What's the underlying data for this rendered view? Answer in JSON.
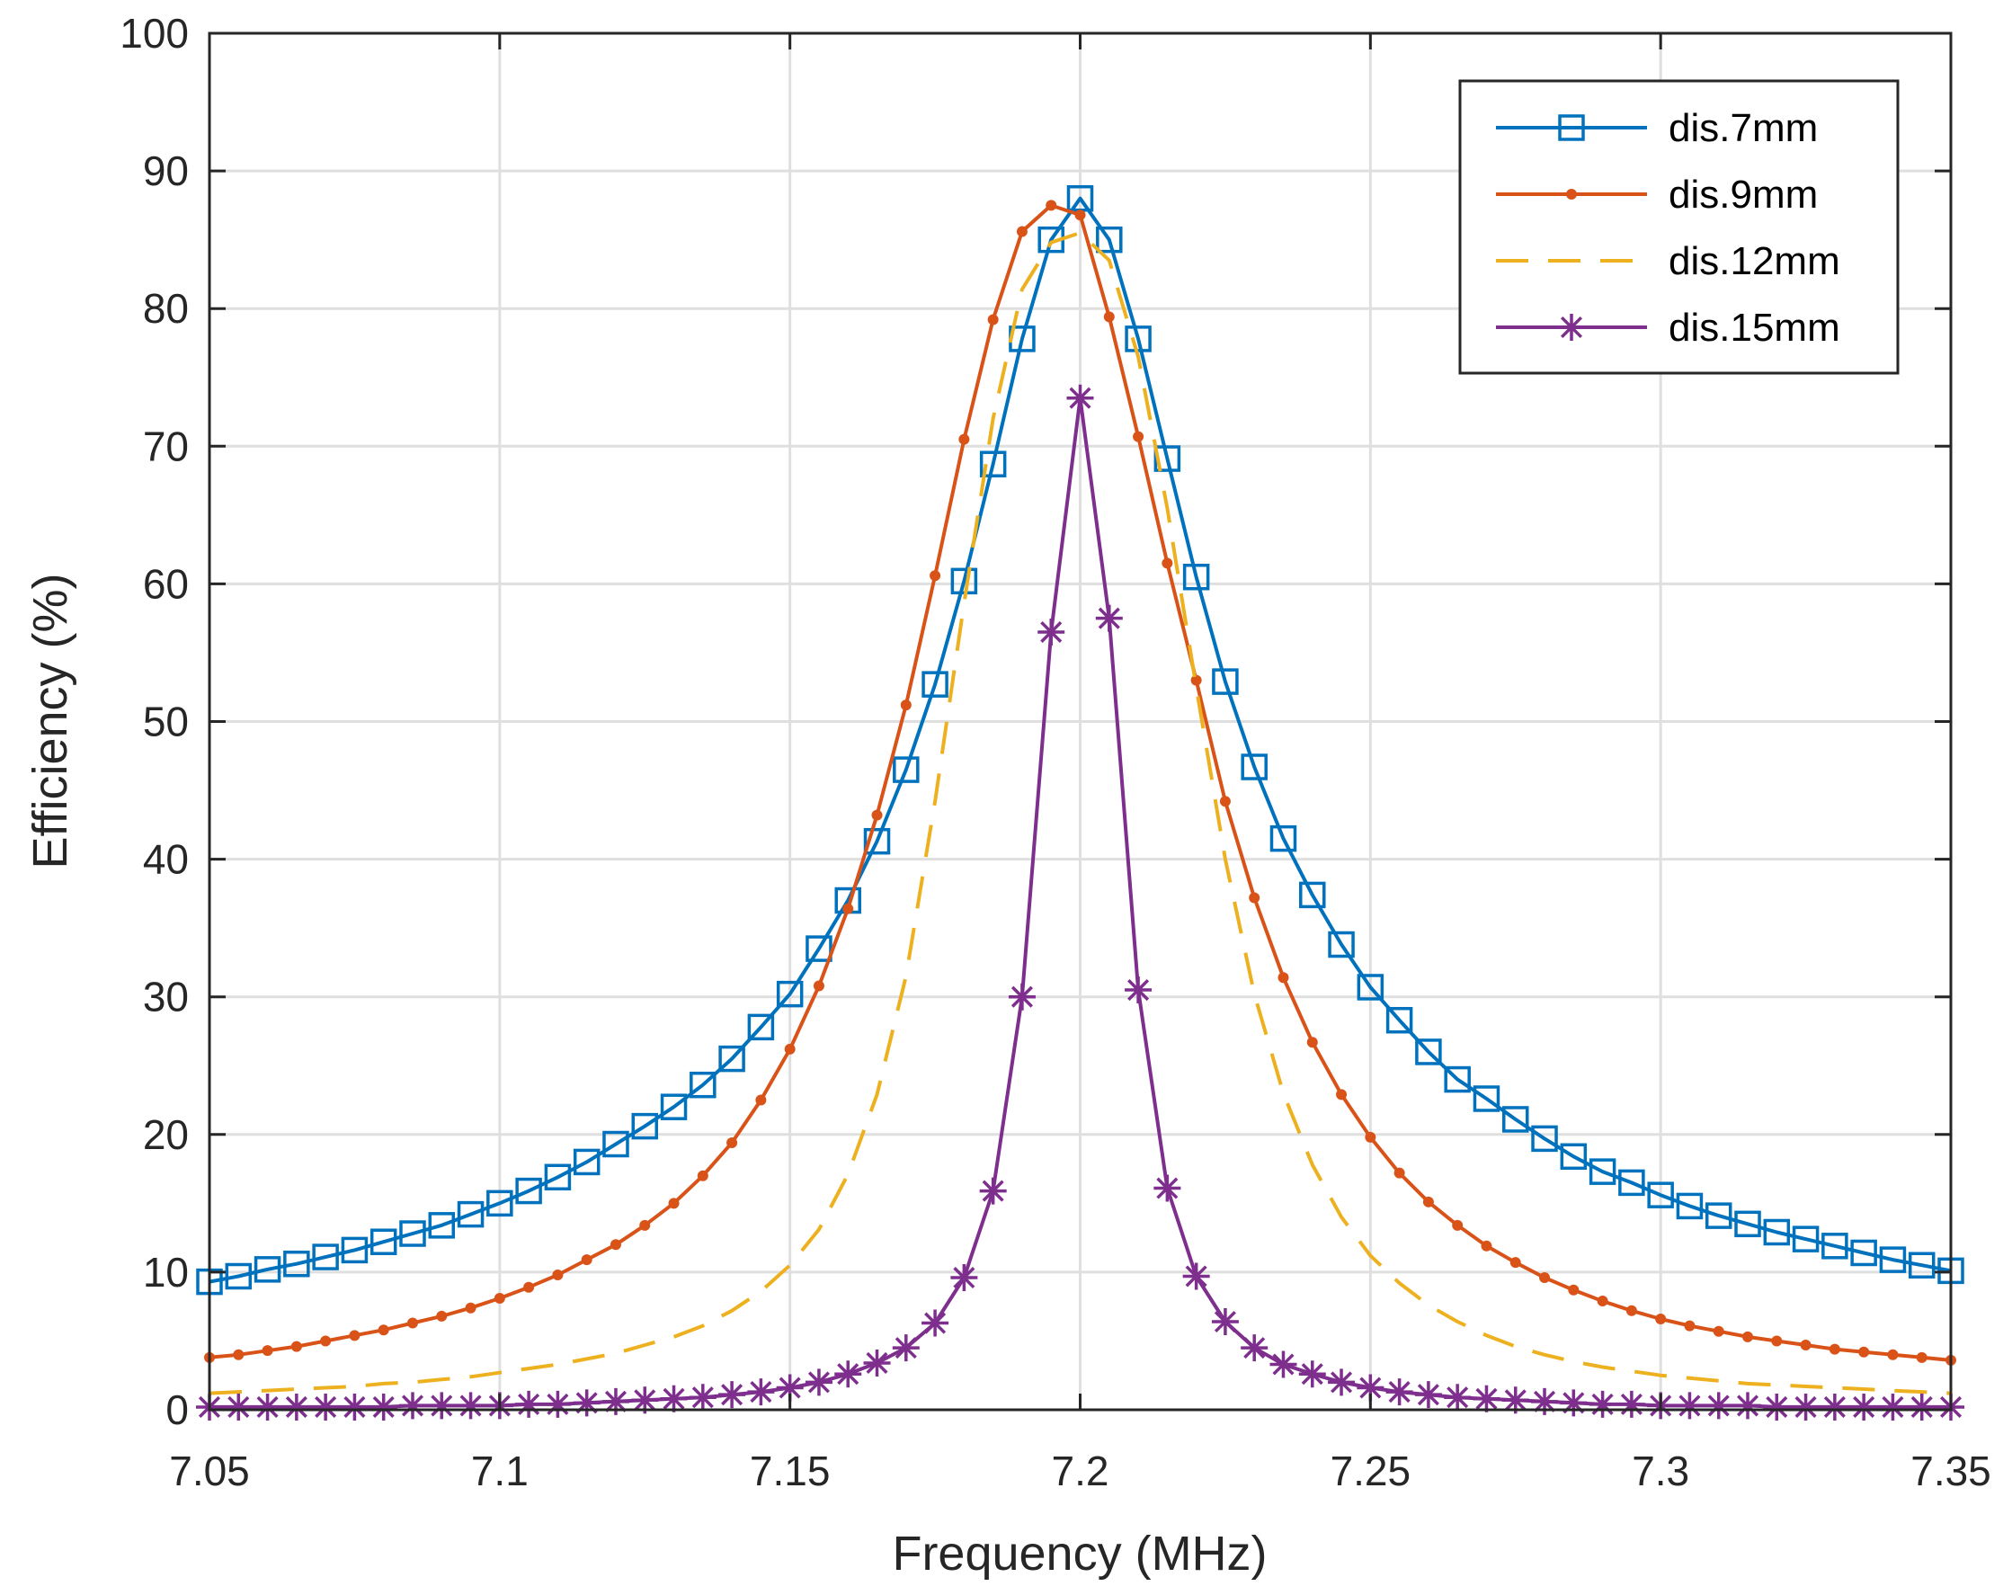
{
  "chart_data": {
    "type": "line",
    "title": "",
    "xlabel": "Frequency (MHz)",
    "ylabel": "Efficiency (%)",
    "xlim": [
      7.05,
      7.35
    ],
    "ylim": [
      0,
      100
    ],
    "xticks": [
      "7.05",
      "7.1",
      "7.15",
      "7.2",
      "7.25",
      "7.3",
      "7.35"
    ],
    "yticks": [
      "0",
      "10",
      "20",
      "30",
      "40",
      "50",
      "60",
      "70",
      "80",
      "90",
      "100"
    ],
    "grid": true,
    "legend_position": "top-right",
    "series": [
      {
        "name": "dis.7mm",
        "color": "#0072BD",
        "dash": "solid",
        "marker": "square",
        "x": [
          7.05,
          7.055,
          7.06,
          7.065,
          7.07,
          7.075,
          7.08,
          7.085,
          7.09,
          7.095,
          7.1,
          7.105,
          7.11,
          7.115,
          7.12,
          7.125,
          7.13,
          7.135,
          7.14,
          7.145,
          7.15,
          7.155,
          7.16,
          7.165,
          7.17,
          7.175,
          7.18,
          7.185,
          7.19,
          7.195,
          7.2,
          7.205,
          7.21,
          7.215,
          7.22,
          7.225,
          7.23,
          7.235,
          7.24,
          7.245,
          7.25,
          7.255,
          7.26,
          7.265,
          7.27,
          7.275,
          7.28,
          7.285,
          7.29,
          7.295,
          7.3,
          7.305,
          7.31,
          7.315,
          7.32,
          7.325,
          7.33,
          7.335,
          7.34,
          7.345,
          7.35
        ],
        "y": [
          9.3,
          9.7,
          10.2,
          10.6,
          11.1,
          11.6,
          12.2,
          12.8,
          13.4,
          14.2,
          15.0,
          15.9,
          16.9,
          18.0,
          19.3,
          20.6,
          22.0,
          23.6,
          25.5,
          27.8,
          30.2,
          33.5,
          37.0,
          41.3,
          46.5,
          52.7,
          60.2,
          68.7,
          77.8,
          85.0,
          88.0,
          85.0,
          77.8,
          69.1,
          60.5,
          52.9,
          46.7,
          41.5,
          37.4,
          33.8,
          30.7,
          28.3,
          26.0,
          24.0,
          22.6,
          21.1,
          19.7,
          18.4,
          17.3,
          16.5,
          15.6,
          14.8,
          14.1,
          13.5,
          12.9,
          12.4,
          11.9,
          11.4,
          10.9,
          10.5,
          10.1
        ]
      },
      {
        "name": "dis.9mm",
        "color": "#D95319",
        "dash": "solid",
        "marker": "dot",
        "x": [
          7.05,
          7.055,
          7.06,
          7.065,
          7.07,
          7.075,
          7.08,
          7.085,
          7.09,
          7.095,
          7.1,
          7.105,
          7.11,
          7.115,
          7.12,
          7.125,
          7.13,
          7.135,
          7.14,
          7.145,
          7.15,
          7.155,
          7.16,
          7.165,
          7.17,
          7.175,
          7.18,
          7.185,
          7.19,
          7.195,
          7.2,
          7.205,
          7.21,
          7.215,
          7.22,
          7.225,
          7.23,
          7.235,
          7.24,
          7.245,
          7.25,
          7.255,
          7.26,
          7.265,
          7.27,
          7.275,
          7.28,
          7.285,
          7.29,
          7.295,
          7.3,
          7.305,
          7.31,
          7.315,
          7.32,
          7.325,
          7.33,
          7.335,
          7.34,
          7.345,
          7.35
        ],
        "y": [
          3.8,
          4.0,
          4.3,
          4.6,
          5.0,
          5.4,
          5.8,
          6.3,
          6.8,
          7.4,
          8.1,
          8.9,
          9.8,
          10.9,
          12.0,
          13.4,
          15.0,
          17.0,
          19.4,
          22.5,
          26.2,
          30.8,
          36.4,
          43.2,
          51.2,
          60.6,
          70.5,
          79.2,
          85.6,
          87.5,
          86.8,
          79.4,
          70.7,
          61.5,
          53.0,
          44.2,
          37.2,
          31.4,
          26.7,
          22.9,
          19.8,
          17.2,
          15.1,
          13.4,
          11.9,
          10.7,
          9.6,
          8.7,
          7.9,
          7.2,
          6.6,
          6.1,
          5.7,
          5.3,
          5.0,
          4.7,
          4.4,
          4.2,
          4.0,
          3.8,
          3.6
        ]
      },
      {
        "name": "dis.12mm",
        "color": "#EDB120",
        "dash": "dashed",
        "marker": "none",
        "x": [
          7.05,
          7.055,
          7.06,
          7.065,
          7.07,
          7.075,
          7.08,
          7.085,
          7.09,
          7.095,
          7.1,
          7.105,
          7.11,
          7.115,
          7.12,
          7.125,
          7.13,
          7.135,
          7.14,
          7.145,
          7.15,
          7.155,
          7.16,
          7.165,
          7.17,
          7.175,
          7.18,
          7.185,
          7.19,
          7.195,
          7.2,
          7.205,
          7.21,
          7.215,
          7.22,
          7.225,
          7.23,
          7.235,
          7.24,
          7.245,
          7.25,
          7.255,
          7.26,
          7.265,
          7.27,
          7.275,
          7.28,
          7.285,
          7.29,
          7.295,
          7.3,
          7.305,
          7.31,
          7.315,
          7.32,
          7.325,
          7.33,
          7.335,
          7.34,
          7.345,
          7.35
        ],
        "y": [
          1.2,
          1.3,
          1.4,
          1.5,
          1.6,
          1.7,
          1.9,
          2.0,
          2.2,
          2.4,
          2.7,
          3.0,
          3.3,
          3.7,
          4.1,
          4.7,
          5.3,
          6.1,
          7.2,
          8.6,
          10.5,
          13.1,
          17.1,
          22.9,
          31.5,
          44.2,
          58.6,
          72.0,
          81.4,
          84.8,
          85.5,
          83.5,
          76.5,
          65.5,
          52.5,
          40.0,
          30.2,
          23.0,
          17.8,
          14.0,
          11.2,
          9.2,
          7.6,
          6.4,
          5.4,
          4.6,
          4.0,
          3.5,
          3.1,
          2.8,
          2.5,
          2.3,
          2.1,
          1.9,
          1.8,
          1.7,
          1.6,
          1.5,
          1.4,
          1.3,
          1.2
        ]
      },
      {
        "name": "dis.15mm",
        "color": "#7E2F8E",
        "dash": "solid",
        "marker": "asterisk",
        "x": [
          7.05,
          7.055,
          7.06,
          7.065,
          7.07,
          7.075,
          7.08,
          7.085,
          7.09,
          7.095,
          7.1,
          7.105,
          7.11,
          7.115,
          7.12,
          7.125,
          7.13,
          7.135,
          7.14,
          7.145,
          7.15,
          7.155,
          7.16,
          7.165,
          7.17,
          7.175,
          7.18,
          7.185,
          7.19,
          7.195,
          7.2,
          7.205,
          7.21,
          7.215,
          7.22,
          7.225,
          7.23,
          7.235,
          7.24,
          7.245,
          7.25,
          7.255,
          7.26,
          7.265,
          7.27,
          7.275,
          7.28,
          7.285,
          7.29,
          7.295,
          7.3,
          7.305,
          7.31,
          7.315,
          7.32,
          7.325,
          7.33,
          7.335,
          7.34,
          7.345,
          7.35
        ],
        "y": [
          0.2,
          0.2,
          0.2,
          0.2,
          0.2,
          0.2,
          0.2,
          0.3,
          0.3,
          0.3,
          0.3,
          0.4,
          0.4,
          0.5,
          0.6,
          0.7,
          0.8,
          0.9,
          1.1,
          1.3,
          1.6,
          2.0,
          2.6,
          3.4,
          4.5,
          6.3,
          9.6,
          15.9,
          30.0,
          56.5,
          73.5,
          57.5,
          30.5,
          16.1,
          9.7,
          6.4,
          4.5,
          3.3,
          2.6,
          2.0,
          1.6,
          1.3,
          1.1,
          0.9,
          0.8,
          0.7,
          0.6,
          0.5,
          0.4,
          0.4,
          0.3,
          0.3,
          0.3,
          0.3,
          0.2,
          0.2,
          0.2,
          0.2,
          0.2,
          0.2,
          0.2
        ]
      }
    ]
  }
}
